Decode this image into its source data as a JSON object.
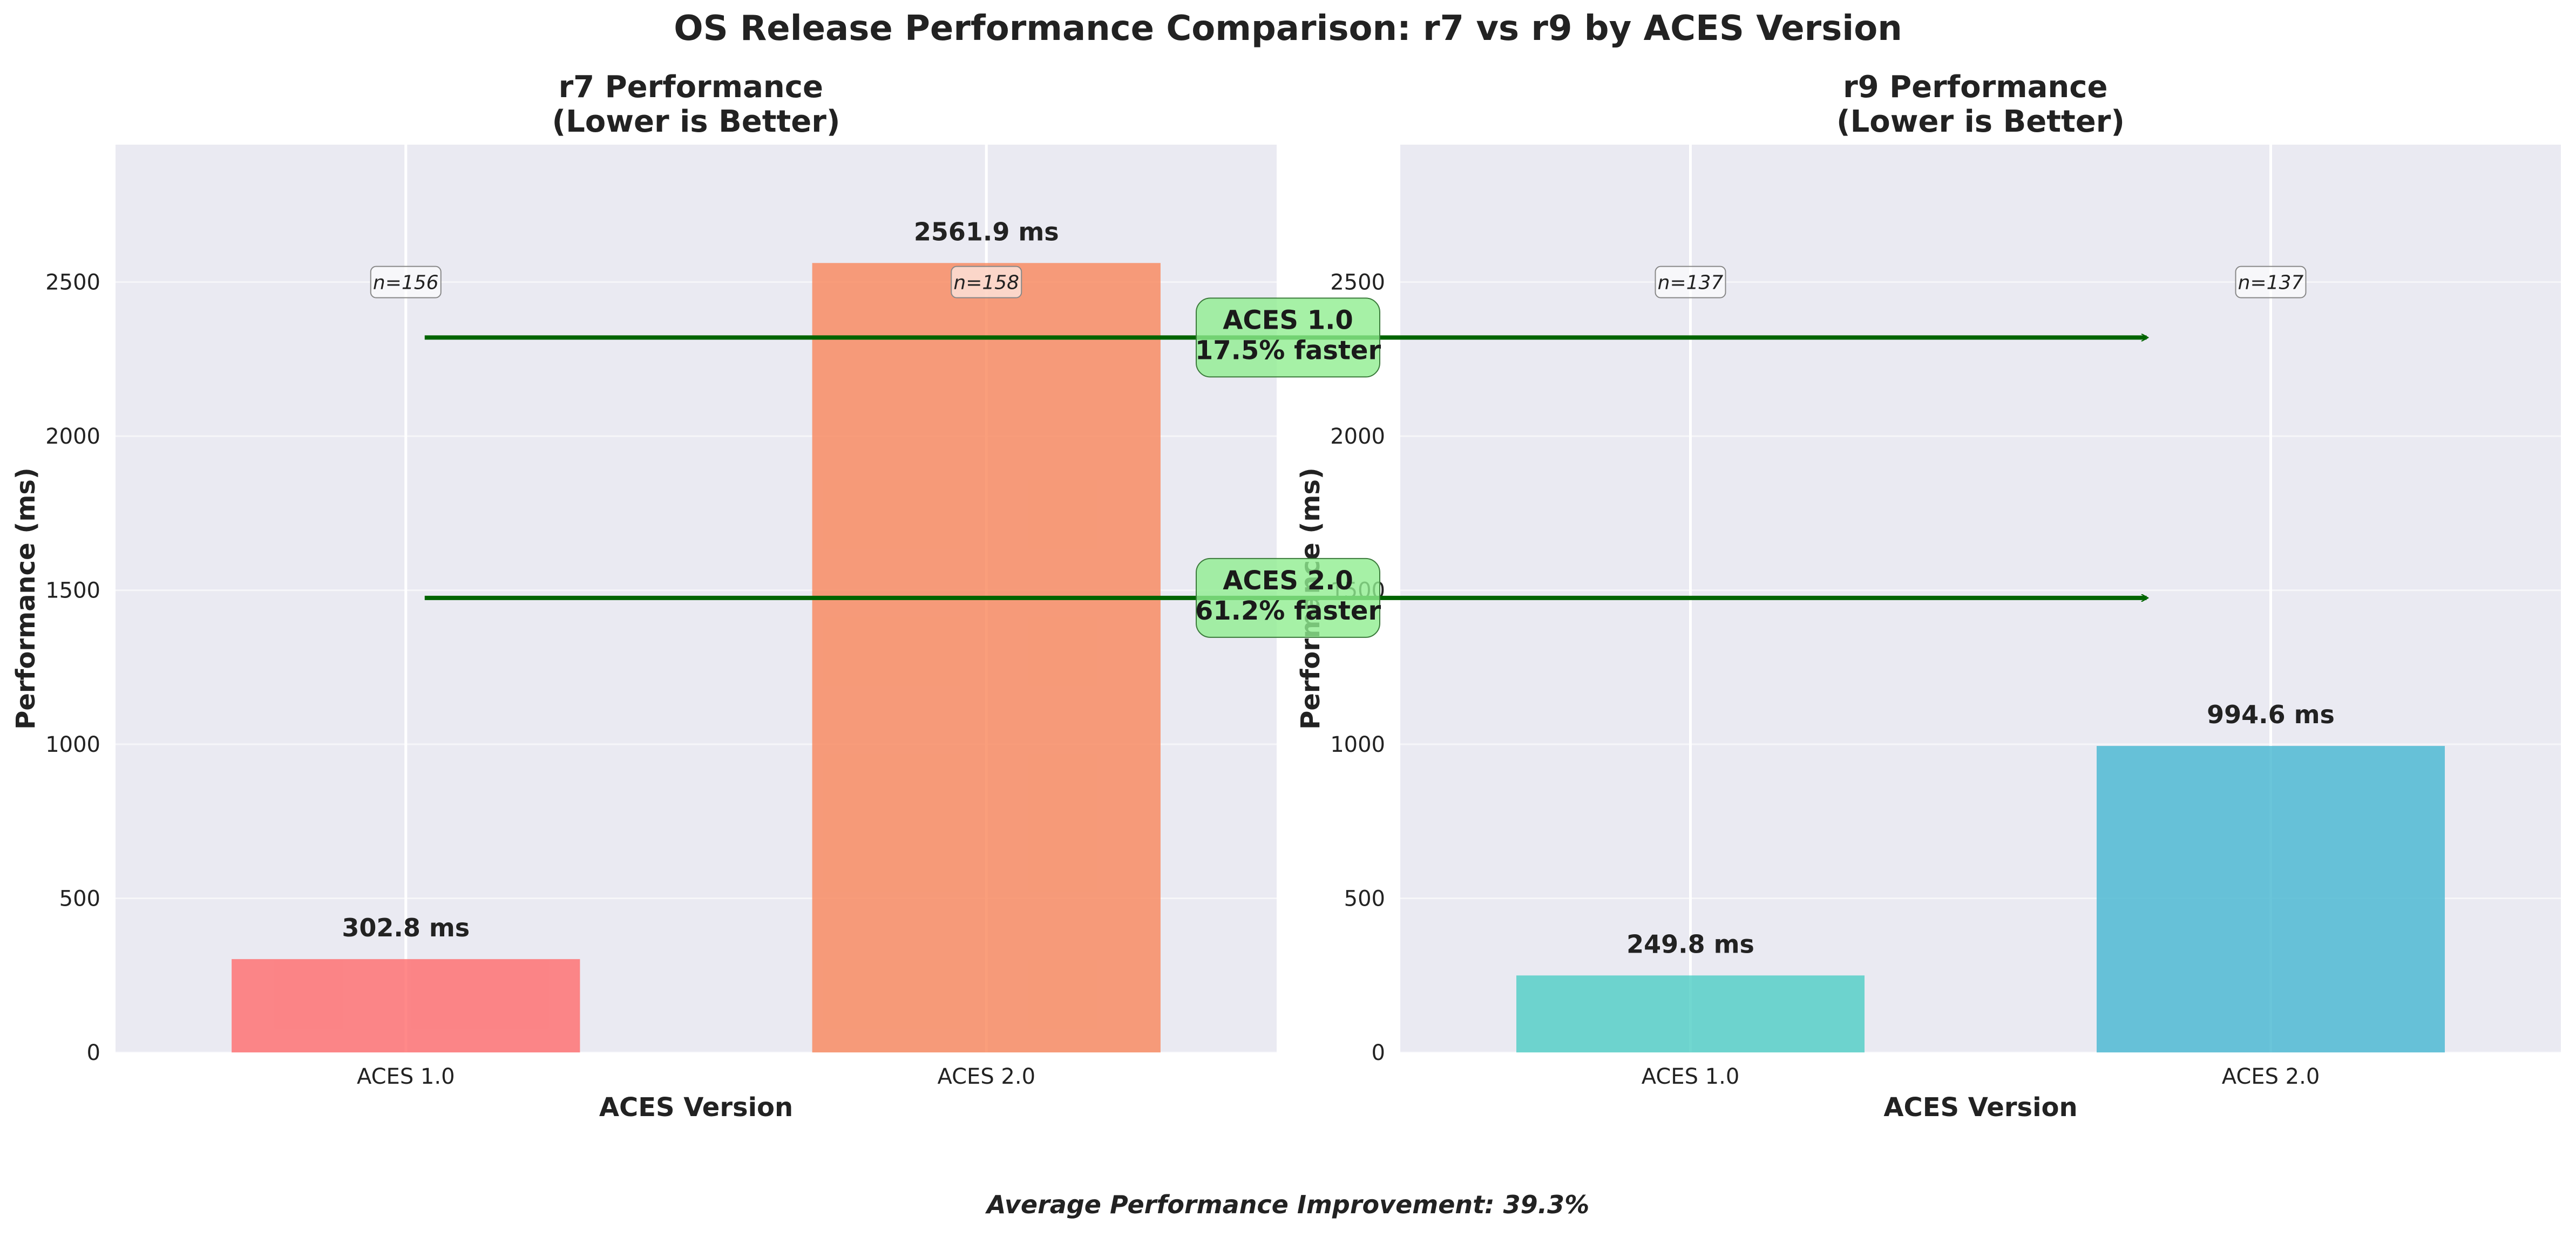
{
  "title": "OS Release Performance Comparison: r7 vs r9 by ACES Version",
  "footer": "Average Performance Improvement: 39.3%",
  "chart_data": [
    {
      "type": "bar",
      "title": "r7 Performance\n(Lower is Better)",
      "xlabel": "ACES Version",
      "ylabel": "Performance (ms)",
      "categories": [
        "ACES 1.0",
        "ACES 2.0"
      ],
      "values": [
        302.8,
        2561.9
      ],
      "value_labels": [
        "302.8 ms",
        "2561.9 ms"
      ],
      "sample_sizes": [
        "n=156",
        "n=158"
      ],
      "colors": [
        "#ff6b6b",
        "#f9865a"
      ],
      "ylim": [
        0,
        2946
      ],
      "yticks": [
        0,
        500,
        1000,
        1500,
        2000,
        2500
      ],
      "grid": true
    },
    {
      "type": "bar",
      "title": "r9 Performance\n(Lower is Better)",
      "xlabel": "ACES Version",
      "ylabel": "Performance (ms)",
      "categories": [
        "ACES 1.0",
        "ACES 2.0"
      ],
      "values": [
        249.8,
        994.6
      ],
      "value_labels": [
        "249.8 ms",
        "994.6 ms"
      ],
      "sample_sizes": [
        "n=137",
        "n=137"
      ],
      "colors": [
        "#4ecdc4",
        "#45b7d1"
      ],
      "ylim": [
        0,
        2946
      ],
      "yticks": [
        0,
        500,
        1000,
        1500,
        2000,
        2500
      ],
      "grid": true
    }
  ],
  "annotations": [
    {
      "label": "ACES 1.0\n17.5% faster",
      "y": 2320
    },
    {
      "label": "ACES 2.0\n61.2% faster",
      "y": 1475
    }
  ],
  "colors": {
    "panel_background": "#eaeaf2",
    "grid": "#ffffff",
    "arrow": "#006400",
    "annotation_box": "#90ee90"
  }
}
